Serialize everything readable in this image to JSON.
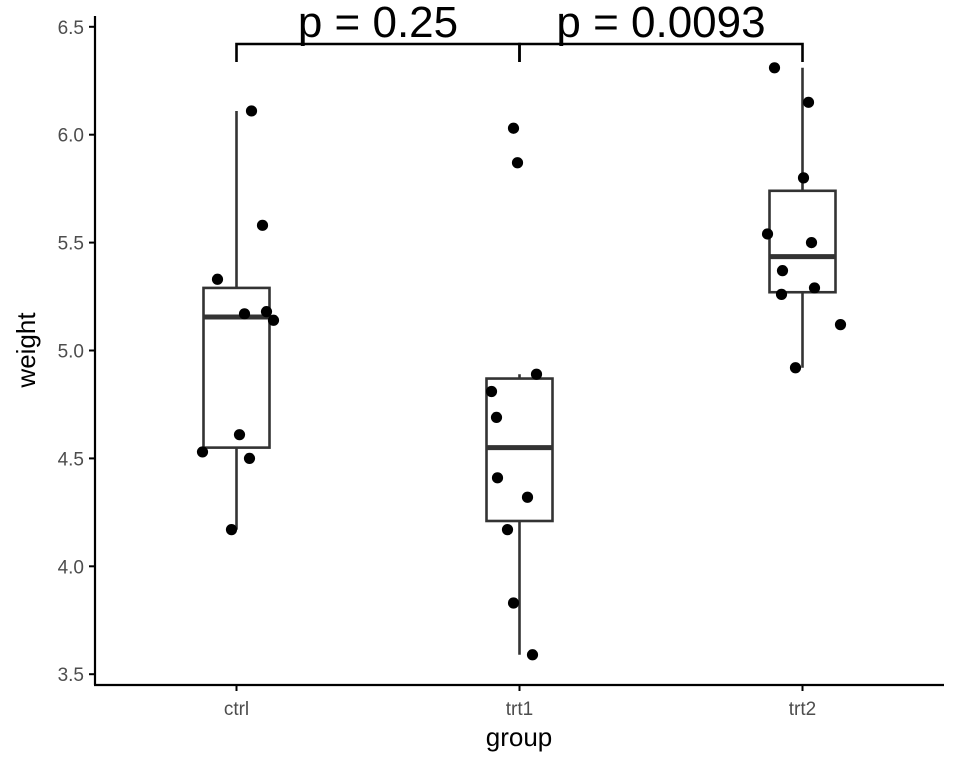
{
  "chart_data": {
    "type": "box",
    "title": "",
    "xlabel": "group",
    "ylabel": "weight",
    "ylim": [
      3.45,
      6.55
    ],
    "yticks": [
      "3.5",
      "4.0",
      "4.5",
      "5.0",
      "5.5",
      "6.0",
      "6.5"
    ],
    "categories": [
      "ctrl",
      "trt1",
      "trt2"
    ],
    "boxes": [
      {
        "group": "ctrl",
        "lower_whisker": 4.17,
        "q1": 4.55,
        "median": 5.155,
        "q3": 5.29,
        "upper_whisker": 6.11
      },
      {
        "group": "trt1",
        "lower_whisker": 3.59,
        "q1": 4.21,
        "median": 4.55,
        "q3": 4.87,
        "upper_whisker": 4.89
      },
      {
        "group": "trt2",
        "lower_whisker": 4.92,
        "q1": 5.27,
        "median": 5.435,
        "q3": 5.74,
        "upper_whisker": 6.31
      }
    ],
    "points": {
      "ctrl": [
        4.17,
        5.58,
        5.18,
        6.11,
        4.5,
        4.61,
        5.17,
        4.53,
        5.33,
        5.14
      ],
      "trt1": [
        4.81,
        4.17,
        4.41,
        3.59,
        5.87,
        3.83,
        6.03,
        4.89,
        4.32,
        4.69
      ],
      "trt2": [
        6.31,
        5.12,
        5.54,
        5.5,
        5.37,
        5.29,
        4.92,
        6.15,
        5.8,
        5.26
      ]
    },
    "comparisons": [
      {
        "groups": [
          "ctrl",
          "trt1"
        ],
        "label": "p = 0.25"
      },
      {
        "groups": [
          "trt1",
          "trt2"
        ],
        "label": "p = 0.0093"
      }
    ],
    "grid": false,
    "legend": "none"
  }
}
